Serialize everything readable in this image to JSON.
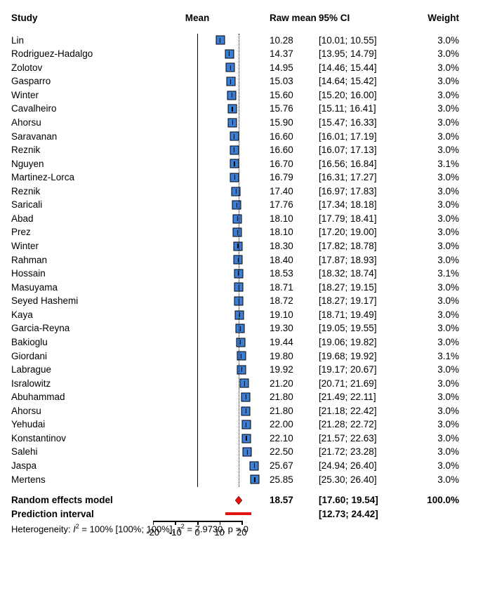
{
  "headers": {
    "study": "Study",
    "mean": "Mean",
    "raw_mean": "Raw mean",
    "ci": "95% CI",
    "weight": "Weight"
  },
  "plot": {
    "xmin": -30,
    "xmax": 30,
    "zero_ref": 0,
    "pooled_ref": 18.57,
    "axis_ticks": [
      -20,
      -10,
      0,
      10,
      20
    ],
    "marker_fill": "#3b7fd6",
    "marker_border": "#000000",
    "diamond_fill": "#e3140f",
    "pred_color": "#e3140f",
    "background": "#ffffff"
  },
  "studies": [
    {
      "name": "Lin",
      "mean": 10.28,
      "ci_low": 10.01,
      "ci_high": 10.55,
      "ci_txt": "[10.01; 10.55]",
      "weight": "3.0%"
    },
    {
      "name": "Rodriguez-Hadalgo",
      "mean": 14.37,
      "ci_low": 13.95,
      "ci_high": 14.79,
      "ci_txt": "[13.95; 14.79]",
      "weight": "3.0%"
    },
    {
      "name": "Zolotov",
      "mean": 14.95,
      "ci_low": 14.46,
      "ci_high": 15.44,
      "ci_txt": "[14.46; 15.44]",
      "weight": "3.0%"
    },
    {
      "name": "Gasparro",
      "mean": 15.03,
      "ci_low": 14.64,
      "ci_high": 15.42,
      "ci_txt": "[14.64; 15.42]",
      "weight": "3.0%"
    },
    {
      "name": "Winter",
      "mean": 15.6,
      "ci_low": 15.2,
      "ci_high": 16.0,
      "ci_txt": "[15.20; 16.00]",
      "weight": "3.0%"
    },
    {
      "name": "Cavalheiro",
      "mean": 15.76,
      "ci_low": 15.11,
      "ci_high": 16.41,
      "ci_txt": "[15.11; 16.41]",
      "weight": "3.0%"
    },
    {
      "name": "Ahorsu",
      "mean": 15.9,
      "ci_low": 15.47,
      "ci_high": 16.33,
      "ci_txt": "[15.47; 16.33]",
      "weight": "3.0%"
    },
    {
      "name": "Saravanan",
      "mean": 16.6,
      "ci_low": 16.01,
      "ci_high": 17.19,
      "ci_txt": "[16.01; 17.19]",
      "weight": "3.0%"
    },
    {
      "name": "Reznik",
      "mean": 16.6,
      "ci_low": 16.07,
      "ci_high": 17.13,
      "ci_txt": "[16.07; 17.13]",
      "weight": "3.0%"
    },
    {
      "name": "Nguyen",
      "mean": 16.7,
      "ci_low": 16.56,
      "ci_high": 16.84,
      "ci_txt": "[16.56; 16.84]",
      "weight": "3.1%"
    },
    {
      "name": "Martinez-Lorca",
      "mean": 16.79,
      "ci_low": 16.31,
      "ci_high": 17.27,
      "ci_txt": "[16.31; 17.27]",
      "weight": "3.0%"
    },
    {
      "name": "Reznik",
      "mean": 17.4,
      "ci_low": 16.97,
      "ci_high": 17.83,
      "ci_txt": "[16.97; 17.83]",
      "weight": "3.0%"
    },
    {
      "name": "Saricali",
      "mean": 17.76,
      "ci_low": 17.34,
      "ci_high": 18.18,
      "ci_txt": "[17.34; 18.18]",
      "weight": "3.0%"
    },
    {
      "name": "Abad",
      "mean": 18.1,
      "ci_low": 17.79,
      "ci_high": 18.41,
      "ci_txt": "[17.79; 18.41]",
      "weight": "3.0%"
    },
    {
      "name": "Prez",
      "mean": 18.1,
      "ci_low": 17.2,
      "ci_high": 19.0,
      "ci_txt": "[17.20; 19.00]",
      "weight": "3.0%"
    },
    {
      "name": "Winter",
      "mean": 18.3,
      "ci_low": 17.82,
      "ci_high": 18.78,
      "ci_txt": "[17.82; 18.78]",
      "weight": "3.0%"
    },
    {
      "name": "Rahman",
      "mean": 18.4,
      "ci_low": 17.87,
      "ci_high": 18.93,
      "ci_txt": "[17.87; 18.93]",
      "weight": "3.0%"
    },
    {
      "name": "Hossain",
      "mean": 18.53,
      "ci_low": 18.32,
      "ci_high": 18.74,
      "ci_txt": "[18.32; 18.74]",
      "weight": "3.1%"
    },
    {
      "name": "Masuyama",
      "mean": 18.71,
      "ci_low": 18.27,
      "ci_high": 19.15,
      "ci_txt": "[18.27; 19.15]",
      "weight": "3.0%"
    },
    {
      "name": "Seyed Hashemi",
      "mean": 18.72,
      "ci_low": 18.27,
      "ci_high": 19.17,
      "ci_txt": "[18.27; 19.17]",
      "weight": "3.0%"
    },
    {
      "name": "Kaya",
      "mean": 19.1,
      "ci_low": 18.71,
      "ci_high": 19.49,
      "ci_txt": "[18.71; 19.49]",
      "weight": "3.0%"
    },
    {
      "name": "Garcia-Reyna",
      "mean": 19.3,
      "ci_low": 19.05,
      "ci_high": 19.55,
      "ci_txt": "[19.05; 19.55]",
      "weight": "3.0%"
    },
    {
      "name": "Bakioglu",
      "mean": 19.44,
      "ci_low": 19.06,
      "ci_high": 19.82,
      "ci_txt": "[19.06; 19.82]",
      "weight": "3.0%"
    },
    {
      "name": "Giordani",
      "mean": 19.8,
      "ci_low": 19.68,
      "ci_high": 19.92,
      "ci_txt": "[19.68; 19.92]",
      "weight": "3.1%"
    },
    {
      "name": "Labrague",
      "mean": 19.92,
      "ci_low": 19.17,
      "ci_high": 20.67,
      "ci_txt": "[19.17; 20.67]",
      "weight": "3.0%"
    },
    {
      "name": "Isralowitz",
      "mean": 21.2,
      "ci_low": 20.71,
      "ci_high": 21.69,
      "ci_txt": "[20.71; 21.69]",
      "weight": "3.0%"
    },
    {
      "name": "Abuhammad",
      "mean": 21.8,
      "ci_low": 21.49,
      "ci_high": 22.11,
      "ci_txt": "[21.49; 22.11]",
      "weight": "3.0%"
    },
    {
      "name": "Ahorsu",
      "mean": 21.8,
      "ci_low": 21.18,
      "ci_high": 22.42,
      "ci_txt": "[21.18; 22.42]",
      "weight": "3.0%"
    },
    {
      "name": "Yehudai",
      "mean": 22.0,
      "ci_low": 21.28,
      "ci_high": 22.72,
      "ci_txt": "[21.28; 22.72]",
      "weight": "3.0%"
    },
    {
      "name": "Konstantinov",
      "mean": 22.1,
      "ci_low": 21.57,
      "ci_high": 22.63,
      "ci_txt": "[21.57; 22.63]",
      "weight": "3.0%"
    },
    {
      "name": "Salehi",
      "mean": 22.5,
      "ci_low": 21.72,
      "ci_high": 23.28,
      "ci_txt": "[21.72; 23.28]",
      "weight": "3.0%"
    },
    {
      "name": "Jaspa",
      "mean": 25.67,
      "ci_low": 24.94,
      "ci_high": 26.4,
      "ci_txt": "[24.94; 26.40]",
      "weight": "3.0%"
    },
    {
      "name": "Mertens",
      "mean": 25.85,
      "ci_low": 25.3,
      "ci_high": 26.4,
      "ci_txt": "[25.30; 26.40]",
      "weight": "3.0%"
    }
  ],
  "summary": {
    "random_label": "Random effects model",
    "random_mean": 18.57,
    "random_mean_txt": "18.57",
    "random_ci_low": 17.6,
    "random_ci_high": 19.54,
    "random_ci_txt": "[17.60; 19.54]",
    "random_weight": "100.0%",
    "pred_label": "Prediction interval",
    "pred_low": 12.73,
    "pred_high": 24.42,
    "pred_ci_txt": "[12.73; 24.42]",
    "het_html": "Heterogeneity: <i>I</i><sup>2</sup> = 100% [100%; 100%], τ<sup>2</sup> = 7.9730, p = 0"
  }
}
